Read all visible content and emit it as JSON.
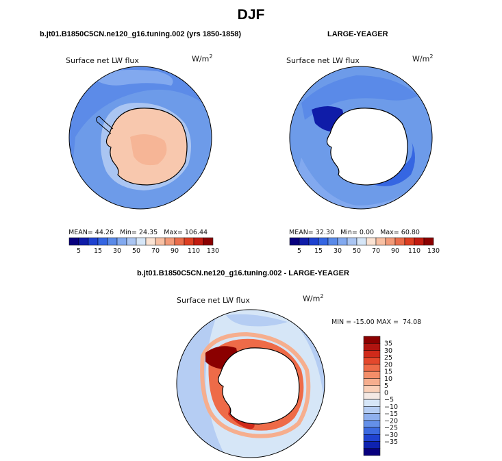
{
  "title": "DJF",
  "chart_data": [
    {
      "type": "heatmap",
      "projection": "south-polar-stereographic",
      "title": "b.jt01.B1850C5CN.ne120_g16.tuning.002 (yrs 1850-1858)",
      "field_label": "Surface net LW flux",
      "units_base": "W/m",
      "units_exp": "2",
      "stats": {
        "mean_label": "MEAN=",
        "mean": "44.26",
        "min_label": "Min=",
        "min": "24.35",
        "max_label": "Max=",
        "max": "106.44"
      },
      "colorbar": {
        "orientation": "horizontal",
        "tick_labels": [
          "5",
          "15",
          "30",
          "50",
          "70",
          "90",
          "110",
          "130"
        ],
        "colors": [
          "#08007e",
          "#0f1ca8",
          "#1f42d0",
          "#3566e2",
          "#5a8ae8",
          "#82a9ef",
          "#aac5f2",
          "#d6e6f7",
          "#fbe3d3",
          "#f8c0a3",
          "#f29a78",
          "#ea6d4b",
          "#dd3f22",
          "#c21b10",
          "#8b0000"
        ]
      },
      "regions": {
        "ocean_value_approx": 35,
        "antarctica_value_approx": 72,
        "min": 24.35,
        "max": 106.44
      }
    },
    {
      "type": "heatmap",
      "projection": "south-polar-stereographic",
      "title": "LARGE-YEAGER",
      "field_label": "Surface net LW flux",
      "units_base": "W/m",
      "units_exp": "2",
      "stats": {
        "mean_label": "MEAN=",
        "mean": "32.30",
        "min_label": "Min=",
        "min": "0.00",
        "max_label": "Max=",
        "max": "60.80"
      },
      "colorbar": {
        "orientation": "horizontal",
        "tick_labels": [
          "5",
          "15",
          "30",
          "50",
          "70",
          "90",
          "110",
          "130"
        ],
        "colors": [
          "#08007e",
          "#0f1ca8",
          "#1f42d0",
          "#3566e2",
          "#5a8ae8",
          "#82a9ef",
          "#aac5f2",
          "#d6e6f7",
          "#fbe3d3",
          "#f8c0a3",
          "#f29a78",
          "#ea6d4b",
          "#dd3f22",
          "#c21b10",
          "#8b0000"
        ]
      },
      "regions": {
        "ocean_value_approx": 35,
        "land_masked": true,
        "min": 0.0,
        "max": 60.8
      }
    },
    {
      "type": "heatmap",
      "projection": "south-polar-stereographic",
      "title": "b.jt01.B1850C5CN.ne120_g16.tuning.002 - LARGE-YEAGER",
      "field_label": "Surface net LW flux",
      "units_base": "W/m",
      "units_exp": "2",
      "stats_text": "MIN = -15.00 MAX =  74.08",
      "colorbar": {
        "orientation": "vertical",
        "tick_labels": [
          "35",
          "30",
          "25",
          "20",
          "15",
          "10",
          "5",
          "0",
          "−5",
          "−10",
          "−15",
          "−20",
          "−25",
          "−30",
          "−35"
        ],
        "colors": [
          "#8b0000",
          "#b01410",
          "#d02a1a",
          "#e4482c",
          "#ee6b48",
          "#f38e69",
          "#f6ae8e",
          "#fad0b8",
          "#f4e9e4",
          "#d6e6f7",
          "#b5cdf3",
          "#8fb0ee",
          "#6490e8",
          "#3c6ae0",
          "#1f42d0",
          "#0e22b0",
          "#08007e"
        ]
      },
      "regions": {
        "ocean_value_approx": -2,
        "coastal_max": 35,
        "min": -15.0,
        "max": 74.08
      }
    }
  ]
}
